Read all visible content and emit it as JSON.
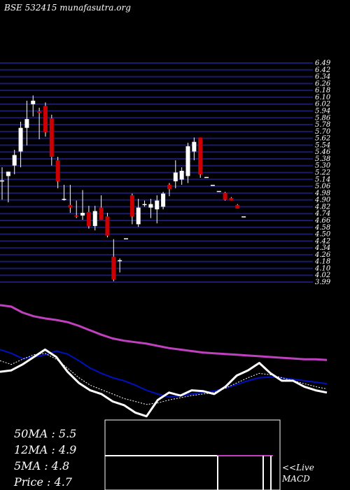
{
  "header": {
    "title": "BSE 532415 munafasutra.org"
  },
  "stats": {
    "ma50": "50MA : 5.5",
    "ma12": "12MA : 4.9",
    "ma5": "5MA : 4.8",
    "price": "Price   : 4.7"
  },
  "macd": {
    "line1": "<<Live",
    "line2": "MACD"
  },
  "colors": {
    "background": "#000000",
    "grid": "#1a1a6e",
    "up_candle": "#ffffff",
    "down_candle": "#cc0000",
    "ma_long": "#c040c0",
    "ma_mid": "#0010c0",
    "ma_fast": "#ffffff",
    "ma_dotted": "#ffffff"
  },
  "chart_data": [
    {
      "type": "candlestick",
      "title": "BSE 532415 munafasutra.org",
      "ylim": [
        3.99,
        6.49
      ],
      "y_ticks": [
        "6.49",
        "6.42",
        "6.34",
        "6.26",
        "6.18",
        "6.10",
        "6.02",
        "5.94",
        "5.86",
        "5.78",
        "5.70",
        "5.62",
        "5.54",
        "5.46",
        "5.38",
        "5.30",
        "5.22",
        "5.14",
        "5.06",
        "4.98",
        "4.90",
        "4.82",
        "4.74",
        "4.66",
        "4.58",
        "4.50",
        "4.42",
        "4.34",
        "4.26",
        "4.18",
        "4.10",
        "4.02",
        "3.99"
      ],
      "candles": [
        {
          "open": 5.15,
          "high": 5.3,
          "low": 4.93,
          "close": 5.15
        },
        {
          "open": 5.2,
          "high": 5.25,
          "low": 4.9,
          "close": 5.25
        },
        {
          "open": 5.32,
          "high": 5.5,
          "low": 5.22,
          "close": 5.44
        },
        {
          "open": 5.48,
          "high": 5.82,
          "low": 5.3,
          "close": 5.75
        },
        {
          "open": 5.75,
          "high": 6.06,
          "low": 5.55,
          "close": 5.85
        },
        {
          "open": 6.02,
          "high": 6.12,
          "low": 5.88,
          "close": 6.06
        },
        {
          "open": 5.94,
          "high": 5.98,
          "low": 5.62,
          "close": 5.92
        },
        {
          "open": 6.0,
          "high": 6.04,
          "low": 5.65,
          "close": 5.7
        },
        {
          "open": 5.86,
          "high": 5.9,
          "low": 5.32,
          "close": 5.42
        },
        {
          "open": 5.38,
          "high": 5.42,
          "low": 5.06,
          "close": 5.14
        },
        {
          "open": 4.94,
          "high": 5.1,
          "low": 4.92,
          "close": 4.94
        },
        {
          "open": 4.87,
          "high": 5.1,
          "low": 4.78,
          "close": 4.84
        },
        {
          "open": 4.75,
          "high": 4.92,
          "low": 4.72,
          "close": 4.74
        },
        {
          "open": 4.75,
          "high": 5.04,
          "low": 4.7,
          "close": 4.78
        },
        {
          "open": 4.79,
          "high": 4.86,
          "low": 4.6,
          "close": 4.63
        },
        {
          "open": 4.63,
          "high": 4.86,
          "low": 4.58,
          "close": 4.8
        },
        {
          "open": 4.84,
          "high": 4.98,
          "low": 4.7,
          "close": 4.7
        },
        {
          "open": 4.74,
          "high": 4.78,
          "low": 4.5,
          "close": 4.52
        },
        {
          "open": 4.28,
          "high": 4.48,
          "low": 4.0,
          "close": 4.02
        },
        {
          "open": 4.24,
          "high": 4.26,
          "low": 4.1,
          "close": 4.24
        },
        {
          "open": 4.49,
          "high": 4.49,
          "low": 4.49,
          "close": 4.49
        },
        {
          "open": 4.98,
          "high": 5.0,
          "low": 4.65,
          "close": 4.74
        },
        {
          "open": 4.65,
          "high": 4.94,
          "low": 4.62,
          "close": 4.84
        },
        {
          "open": 4.87,
          "high": 4.92,
          "low": 4.85,
          "close": 4.88
        },
        {
          "open": 4.84,
          "high": 4.94,
          "low": 4.72,
          "close": 4.88
        },
        {
          "open": 4.82,
          "high": 4.98,
          "low": 4.66,
          "close": 4.92
        },
        {
          "open": 4.85,
          "high": 5.02,
          "low": 4.82,
          "close": 5.0
        },
        {
          "open": 5.1,
          "high": 5.12,
          "low": 4.97,
          "close": 5.05
        },
        {
          "open": 5.14,
          "high": 5.38,
          "low": 5.06,
          "close": 5.24
        },
        {
          "open": 5.16,
          "high": 5.3,
          "low": 5.1,
          "close": 5.26
        },
        {
          "open": 5.2,
          "high": 5.58,
          "low": 5.12,
          "close": 5.54
        },
        {
          "open": 5.48,
          "high": 5.64,
          "low": 5.38,
          "close": 5.59
        },
        {
          "open": 5.64,
          "high": 5.64,
          "low": 5.18,
          "close": 5.22
        },
        {
          "open": 5.19,
          "high": 5.19,
          "low": 5.19,
          "close": 5.19
        },
        {
          "open": 5.1,
          "high": 5.1,
          "low": 5.1,
          "close": 5.1
        },
        {
          "open": 5.03,
          "high": 5.03,
          "low": 5.03,
          "close": 5.03
        },
        {
          "open": 5.01,
          "high": 5.02,
          "low": 4.92,
          "close": 4.93
        },
        {
          "open": 4.95,
          "high": 4.96,
          "low": 4.92,
          "close": 4.92
        },
        {
          "open": 4.87,
          "high": 4.88,
          "low": 4.83,
          "close": 4.83
        },
        {
          "open": 4.74,
          "high": 4.74,
          "low": 4.74,
          "close": 4.74
        }
      ]
    },
    {
      "type": "line",
      "series": [
        {
          "values": [
            6.0,
            5.98,
            5.9,
            5.85,
            5.82,
            5.8,
            5.77,
            5.72,
            5.66,
            5.6,
            5.55,
            5.52,
            5.5,
            5.48,
            5.45,
            5.42,
            5.4,
            5.38,
            5.36,
            5.35,
            5.34,
            5.33,
            5.32,
            5.31,
            5.3,
            5.29,
            5.28,
            5.27,
            5.27,
            5.26
          ]
        },
        {
          "values": [
            5.4,
            5.35,
            5.28,
            5.3,
            5.33,
            5.38,
            5.34,
            5.25,
            5.15,
            5.08,
            5.02,
            4.98,
            4.92,
            4.85,
            4.8,
            4.76,
            4.78,
            4.8,
            4.82,
            4.84,
            4.88,
            4.93,
            4.98,
            5.02,
            5.03,
            5.02,
            5.0,
            4.98,
            4.96,
            4.94
          ]
        },
        {
          "values": [
            5.1,
            5.12,
            5.2,
            5.3,
            5.4,
            5.3,
            5.1,
            4.95,
            4.85,
            4.8,
            4.7,
            4.65,
            4.55,
            4.5,
            4.72,
            4.82,
            4.78,
            4.85,
            4.84,
            4.8,
            4.9,
            5.05,
            5.12,
            5.22,
            5.08,
            4.98,
            4.98,
            4.9,
            4.85,
            4.82
          ]
        },
        {
          "values": [
            5.25,
            5.2,
            5.27,
            5.33,
            5.35,
            5.27,
            5.15,
            5.02,
            4.92,
            4.86,
            4.8,
            4.74,
            4.7,
            4.66,
            4.68,
            4.72,
            4.75,
            4.78,
            4.8,
            4.82,
            4.88,
            4.95,
            5.02,
            5.08,
            5.06,
            5.02,
            4.98,
            4.94,
            4.9,
            4.87
          ]
        }
      ]
    },
    {
      "type": "bar",
      "title": "MACD",
      "values": [
        0,
        1,
        1
      ]
    }
  ]
}
